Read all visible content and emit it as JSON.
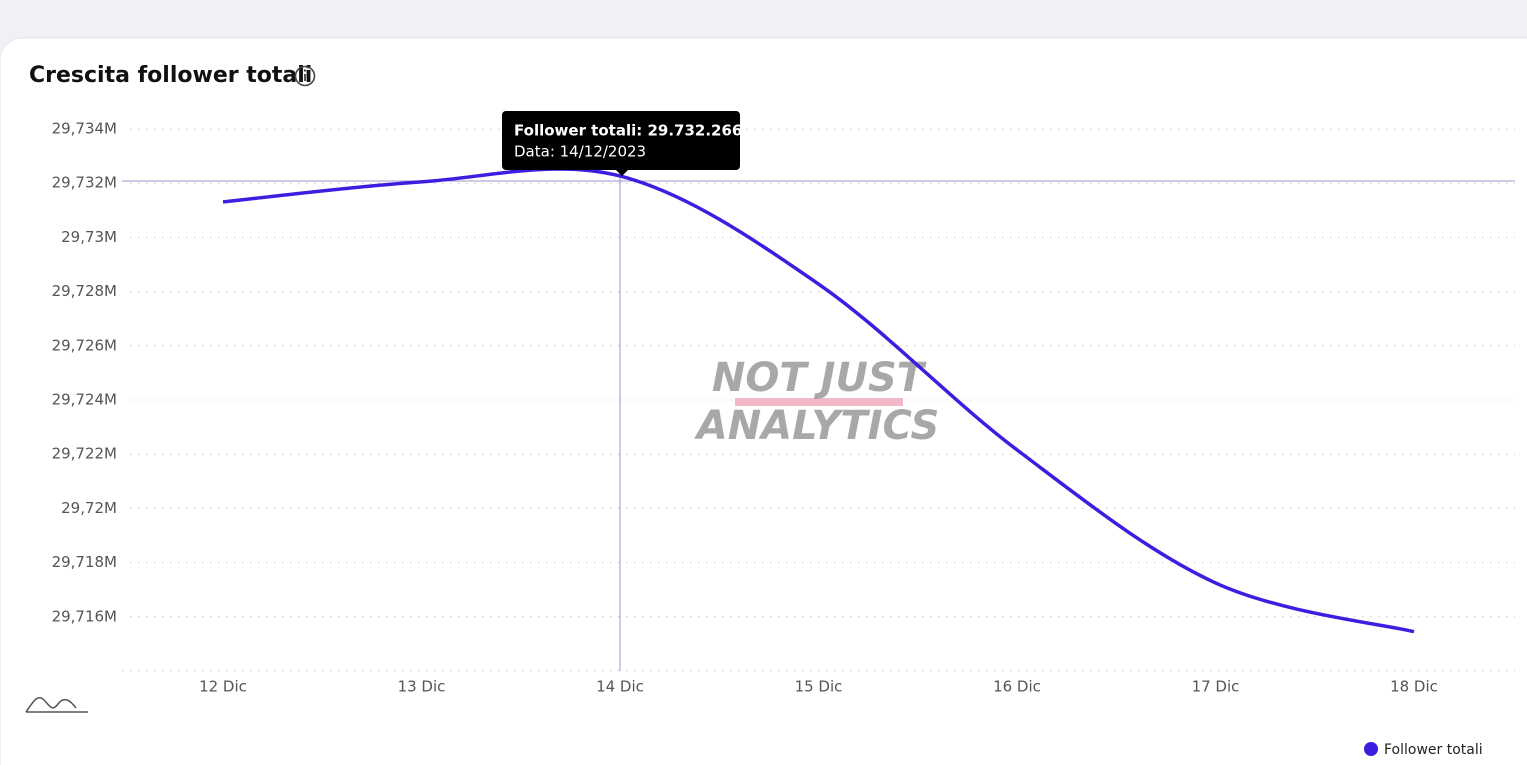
{
  "chart_data": {
    "type": "line",
    "title": "Crescita follower totali",
    "categories": [
      "12 Dic",
      "13 Dic",
      "14 Dic",
      "15 Dic",
      "16 Dic",
      "17 Dic",
      "18 Dic"
    ],
    "series": [
      {
        "name": "Follower totali",
        "color": "#3d1de0",
        "values": [
          29731310,
          29732050,
          29732266,
          29728280,
          29722160,
          29717250,
          29715450
        ]
      }
    ],
    "ylim": [
      29714000,
      29734000
    ],
    "yticks": [
      {
        "value": 29716000,
        "label": "29,716M"
      },
      {
        "value": 29718000,
        "label": "29,718M"
      },
      {
        "value": 29720000,
        "label": "29,72M"
      },
      {
        "value": 29722000,
        "label": "29,722M"
      },
      {
        "value": 29724000,
        "label": "29,724M"
      },
      {
        "value": 29726000,
        "label": "29,726M"
      },
      {
        "value": 29728000,
        "label": "29,728M"
      },
      {
        "value": 29730000,
        "label": "29,73M"
      },
      {
        "value": 29732000,
        "label": "29,732M"
      },
      {
        "value": 29734000,
        "label": "29,734M"
      }
    ],
    "grid": true,
    "legend": "bottom-right",
    "tooltip": {
      "index": 2,
      "label": "Follower totali: 29.732.266",
      "date": "Data: 14/12/2023"
    },
    "watermark": [
      "NOT JUST",
      "ANALYTICS"
    ]
  }
}
